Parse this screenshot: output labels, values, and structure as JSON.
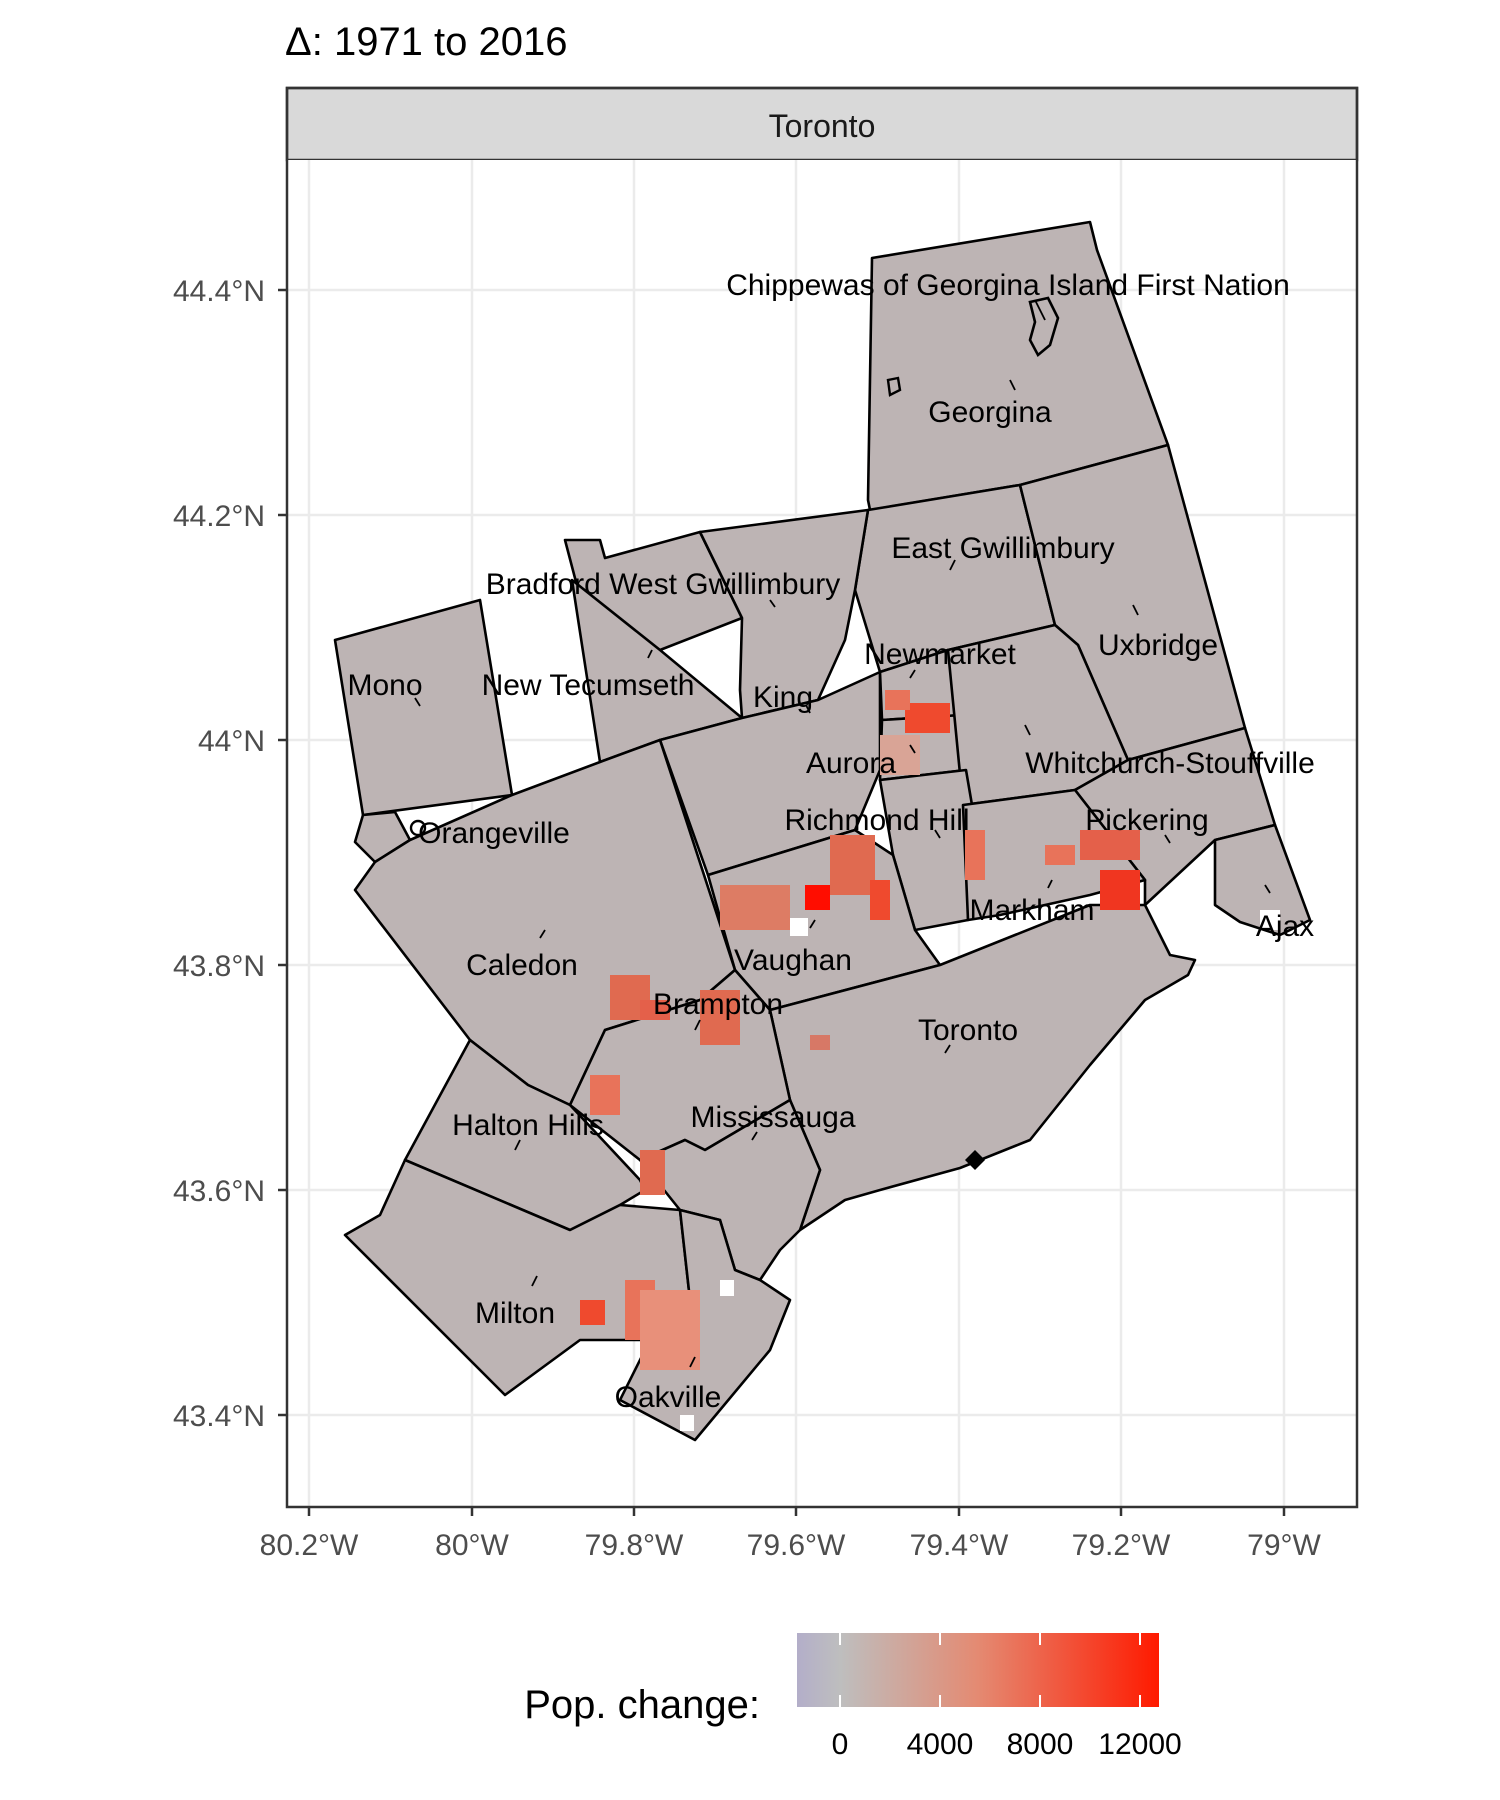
{
  "title": "Δ: 1971 to 2016",
  "facet": "Toronto",
  "legend": {
    "title": "Pop. change:",
    "ticks": [
      "0",
      "4000",
      "8000",
      "12000"
    ],
    "colors": {
      "low": "#b3aec9",
      "zero": "#bebebe",
      "mid": "#e48a72",
      "high": "#ff1a00"
    }
  },
  "chart_data": {
    "type": "heatmap",
    "x_ticks": [
      "80.2°W",
      "80°W",
      "79.8°W",
      "79.6°W",
      "79.4°W",
      "79.2°W",
      "79°W"
    ],
    "y_ticks": [
      "44.4°N",
      "44.2°N",
      "44°N",
      "43.8°N",
      "43.6°N",
      "43.4°N"
    ],
    "xlim": [
      -80.23,
      -78.9
    ],
    "ylim": [
      43.32,
      44.52
    ],
    "grid": true,
    "legend_position": "bottom",
    "regions": [
      {
        "name": "Chippewas of Georgina Island First Nation",
        "label": "Chippewas of Georgina Island First Nation"
      },
      {
        "name": "Georgina",
        "label": "Georgina"
      },
      {
        "name": "East Gwillimbury",
        "label": "East Gwillimbury"
      },
      {
        "name": "Bradford West Gwillimbury",
        "label": "Bradford West Gwillimbury"
      },
      {
        "name": "Uxbridge",
        "label": "Uxbridge"
      },
      {
        "name": "Newmarket",
        "label": "Newmarket"
      },
      {
        "name": "Mono",
        "label": "Mono"
      },
      {
        "name": "New Tecumseth",
        "label": "New Tecumseth"
      },
      {
        "name": "King",
        "label": "King"
      },
      {
        "name": "Aurora",
        "label": "Aurora"
      },
      {
        "name": "Whitchurch-Stouffville",
        "label": "Whitchurch-Stouffville"
      },
      {
        "name": "Orangeville",
        "label": "Orangeville"
      },
      {
        "name": "Richmond Hill",
        "label": "Richmond Hill"
      },
      {
        "name": "Pickering",
        "label": "Pickering"
      },
      {
        "name": "Markham",
        "label": "Markham"
      },
      {
        "name": "Ajax",
        "label": "Ajax"
      },
      {
        "name": "Caledon",
        "label": "Caledon"
      },
      {
        "name": "Vaughan",
        "label": "Vaughan"
      },
      {
        "name": "Brampton",
        "label": "Brampton"
      },
      {
        "name": "Toronto",
        "label": "Toronto"
      },
      {
        "name": "Halton Hills",
        "label": "Halton Hills"
      },
      {
        "name": "Mississauga",
        "label": "Mississauga"
      },
      {
        "name": "Milton",
        "label": "Milton"
      },
      {
        "name": "Oakville",
        "label": "Oakville"
      }
    ]
  }
}
